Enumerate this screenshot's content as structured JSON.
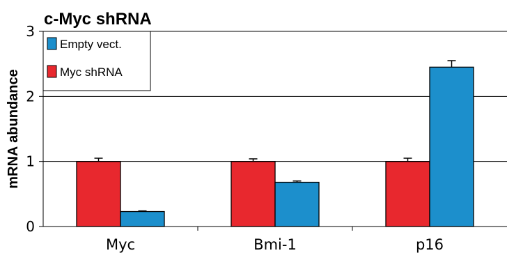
{
  "chart_data": {
    "type": "bar",
    "title": "c-Myc shRNA",
    "ylabel": "mRNA abundance",
    "xlabel": "",
    "categories": [
      "Myc",
      "Bmi-1",
      "p16"
    ],
    "ylim": [
      0,
      3
    ],
    "yticks": [
      "0",
      "1",
      "2",
      "3"
    ],
    "grid": true,
    "legend_position": "top-left",
    "series": [
      {
        "name": "Myc shRNA",
        "color": "#e8282e",
        "values": [
          1.0,
          1.0,
          1.0
        ],
        "errors": [
          0.05,
          0.04,
          0.05
        ]
      },
      {
        "name": "Empty vect.",
        "color": "#1c8fcc",
        "values": [
          0.23,
          0.68,
          2.45
        ],
        "errors": [
          0.01,
          0.02,
          0.1
        ]
      }
    ],
    "legend_order": [
      1,
      0
    ]
  }
}
